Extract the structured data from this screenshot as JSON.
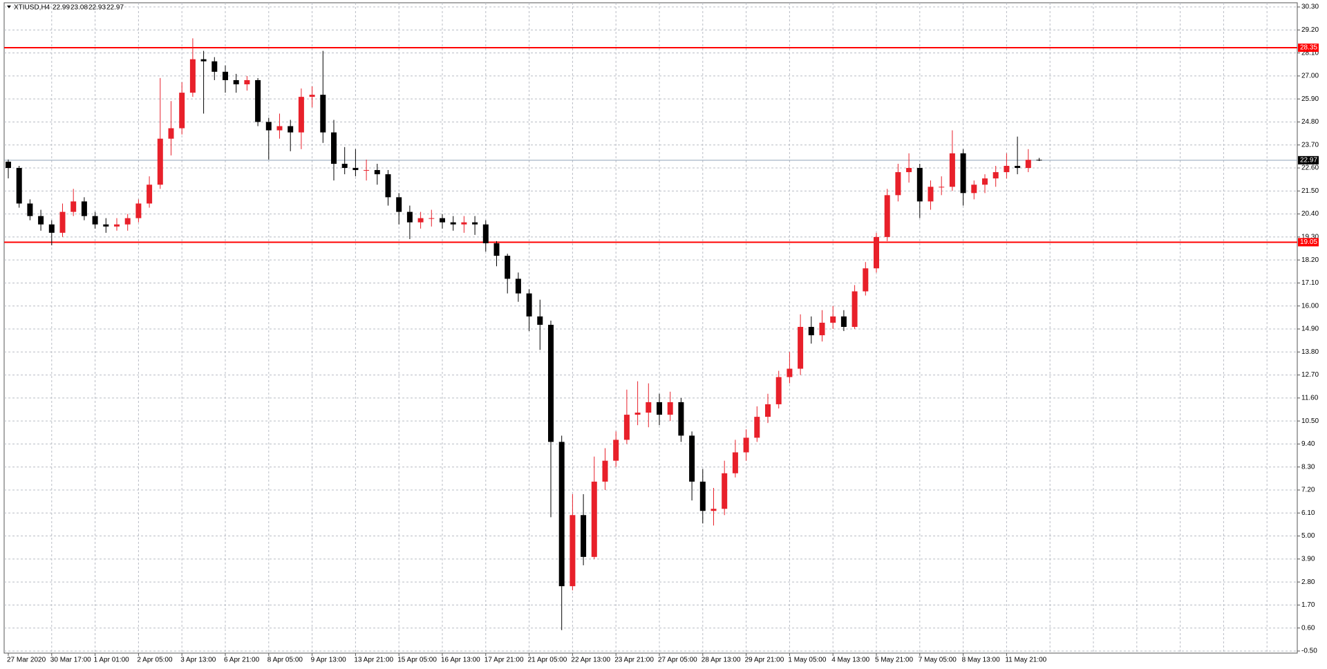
{
  "chart_data": {
    "type": "candlestick",
    "title": "XTIUSD,H4",
    "up_color": "#e8202a",
    "down_color": "#000000",
    "level_color": "#ff0000",
    "price_color": "#8fa2b8",
    "grid": true,
    "ylim": [
      -0.6,
      30.5
    ],
    "yticks": [
      {
        "value": 30.3,
        "label": "30.30"
      },
      {
        "value": 29.2,
        "label": "29.20"
      },
      {
        "value": 28.1,
        "label": "28.10"
      },
      {
        "value": 27,
        "label": "27.00"
      },
      {
        "value": 25.9,
        "label": "25.90"
      },
      {
        "value": 24.8,
        "label": "24.80"
      },
      {
        "value": 23.7,
        "label": "23.70"
      },
      {
        "value": 22.6,
        "label": "22.60"
      },
      {
        "value": 21.5,
        "label": "21.50"
      },
      {
        "value": 20.4,
        "label": "20.40"
      },
      {
        "value": 19.3,
        "label": "19.30"
      },
      {
        "value": 18.2,
        "label": "18.20"
      },
      {
        "value": 17.1,
        "label": "17.10"
      },
      {
        "value": 16,
        "label": "16.00"
      },
      {
        "value": 14.9,
        "label": "14.90"
      },
      {
        "value": 13.8,
        "label": "13.80"
      },
      {
        "value": 12.7,
        "label": "12.70"
      },
      {
        "value": 11.6,
        "label": "11.60"
      },
      {
        "value": 10.5,
        "label": "10.50"
      },
      {
        "value": 9.4,
        "label": "9.40"
      },
      {
        "value": 8.3,
        "label": "8.30"
      },
      {
        "value": 7.2,
        "label": "7.20"
      },
      {
        "value": 6.1,
        "label": "6.10"
      },
      {
        "value": 5,
        "label": "5.00"
      },
      {
        "value": 3.9,
        "label": "3.90"
      },
      {
        "value": 2.8,
        "label": "2.80"
      },
      {
        "value": 1.7,
        "label": "1.70"
      },
      {
        "value": 0.6,
        "label": "0.60"
      },
      {
        "value": -0.5,
        "label": "-0.50"
      }
    ],
    "xtick_labels": [
      "27 Mar 2020",
      "30 Mar 17:00",
      "1 Apr 01:00",
      "2 Apr 05:00",
      "3 Apr 13:00",
      "6 Apr 21:00",
      "8 Apr 05:00",
      "9 Apr 13:00",
      "13 Apr 21:00",
      "15 Apr 05:00",
      "16 Apr 13:00",
      "17 Apr 21:00",
      "21 Apr 05:00",
      "22 Apr 13:00",
      "23 Apr 21:00",
      "27 Apr 05:00",
      "28 Apr 13:00",
      "29 Apr 21:00",
      "1 May 05:00",
      "4 May 13:00",
      "5 May 21:00",
      "7 May 05:00",
      "8 May 13:00",
      "11 May 21:00"
    ],
    "levels": [
      28.35,
      19.05
    ],
    "last_price": 22.97,
    "ohlc": [
      [
        22.9,
        23.0,
        22.1,
        22.6
      ],
      [
        22.6,
        22.7,
        20.7,
        20.9
      ],
      [
        20.9,
        21.1,
        20.1,
        20.3
      ],
      [
        20.3,
        20.6,
        19.6,
        19.9
      ],
      [
        19.9,
        20.1,
        18.9,
        19.5
      ],
      [
        19.5,
        20.9,
        19.3,
        20.5
      ],
      [
        20.5,
        21.6,
        20.3,
        21.0
      ],
      [
        21.0,
        21.2,
        20.1,
        20.3
      ],
      [
        20.3,
        20.5,
        19.7,
        19.9
      ],
      [
        19.9,
        20.2,
        19.5,
        19.8
      ],
      [
        19.8,
        20.2,
        19.6,
        19.9
      ],
      [
        19.9,
        20.4,
        19.6,
        20.2
      ],
      [
        20.2,
        21.1,
        20.0,
        20.9
      ],
      [
        20.9,
        22.2,
        20.7,
        21.8
      ],
      [
        21.8,
        26.9,
        21.6,
        24.0
      ],
      [
        24.0,
        25.8,
        23.2,
        24.5
      ],
      [
        24.5,
        26.7,
        24.2,
        26.2
      ],
      [
        26.2,
        28.8,
        26.0,
        27.8
      ],
      [
        27.8,
        28.2,
        25.2,
        27.7
      ],
      [
        27.7,
        27.9,
        26.8,
        27.2
      ],
      [
        27.2,
        27.5,
        26.2,
        26.8
      ],
      [
        26.8,
        27.1,
        26.2,
        26.6
      ],
      [
        26.6,
        27.0,
        26.3,
        26.8
      ],
      [
        26.8,
        26.9,
        24.6,
        24.8
      ],
      [
        24.8,
        25.0,
        23.0,
        24.4
      ],
      [
        24.4,
        25.2,
        24.0,
        24.6
      ],
      [
        24.6,
        24.9,
        23.4,
        24.3
      ],
      [
        24.3,
        26.4,
        23.5,
        26.0
      ],
      [
        26.0,
        26.5,
        25.5,
        26.1
      ],
      [
        26.1,
        28.2,
        23.8,
        24.3
      ],
      [
        24.3,
        24.9,
        22.0,
        22.8
      ],
      [
        22.8,
        23.6,
        22.3,
        22.6
      ],
      [
        22.6,
        23.5,
        22.2,
        22.5
      ],
      [
        22.5,
        23.0,
        22.0,
        22.5
      ],
      [
        22.5,
        22.8,
        21.8,
        22.3
      ],
      [
        22.3,
        22.5,
        20.8,
        21.2
      ],
      [
        21.2,
        21.4,
        19.9,
        20.5
      ],
      [
        20.5,
        20.8,
        19.2,
        20.0
      ],
      [
        20.0,
        20.5,
        19.7,
        20.2
      ],
      [
        20.2,
        20.6,
        19.8,
        20.2
      ],
      [
        20.2,
        20.4,
        19.7,
        20.0
      ],
      [
        20.0,
        20.3,
        19.6,
        19.9
      ],
      [
        19.9,
        20.3,
        19.5,
        20.0
      ],
      [
        20.0,
        20.3,
        19.4,
        19.9
      ],
      [
        19.9,
        20.1,
        18.6,
        19.0
      ],
      [
        19.0,
        19.1,
        17.9,
        18.4
      ],
      [
        18.4,
        18.5,
        16.6,
        17.3
      ],
      [
        17.3,
        17.6,
        16.2,
        16.6
      ],
      [
        16.6,
        16.8,
        14.8,
        15.5
      ],
      [
        15.5,
        16.3,
        13.9,
        15.1
      ],
      [
        15.1,
        15.3,
        5.9,
        9.5
      ],
      [
        9.5,
        9.8,
        0.5,
        2.6
      ],
      [
        2.6,
        7.0,
        2.4,
        6.0
      ],
      [
        6.0,
        7.0,
        3.6,
        4.0
      ],
      [
        4.0,
        8.8,
        3.9,
        7.6
      ],
      [
        7.6,
        9.2,
        7.2,
        8.6
      ],
      [
        8.6,
        10.0,
        8.3,
        9.6
      ],
      [
        9.6,
        12.0,
        9.4,
        10.8
      ],
      [
        10.8,
        12.4,
        10.3,
        10.9
      ],
      [
        10.9,
        12.3,
        10.2,
        11.4
      ],
      [
        11.4,
        11.8,
        10.3,
        10.8
      ],
      [
        10.8,
        11.9,
        10.5,
        11.4
      ],
      [
        11.4,
        11.6,
        9.5,
        9.8
      ],
      [
        9.8,
        10.0,
        6.7,
        7.6
      ],
      [
        7.6,
        8.2,
        5.6,
        6.2
      ],
      [
        6.2,
        7.3,
        5.5,
        6.3
      ],
      [
        6.3,
        8.6,
        6.0,
        8.0
      ],
      [
        8.0,
        9.6,
        7.8,
        9.0
      ],
      [
        9.0,
        10.1,
        8.6,
        9.7
      ],
      [
        9.7,
        11.2,
        9.5,
        10.7
      ],
      [
        10.7,
        11.8,
        10.4,
        11.3
      ],
      [
        11.3,
        12.9,
        11.1,
        12.6
      ],
      [
        12.6,
        13.8,
        12.3,
        13.0
      ],
      [
        13.0,
        15.6,
        12.7,
        15.0
      ],
      [
        15.0,
        15.5,
        14.2,
        14.6
      ],
      [
        14.6,
        15.8,
        14.3,
        15.2
      ],
      [
        15.2,
        16.0,
        14.9,
        15.5
      ],
      [
        15.5,
        15.8,
        14.8,
        15.0
      ],
      [
        15.0,
        17.0,
        14.9,
        16.7
      ],
      [
        16.7,
        18.1,
        16.5,
        17.8
      ],
      [
        17.8,
        19.5,
        17.6,
        19.3
      ],
      [
        19.3,
        21.6,
        19.1,
        21.3
      ],
      [
        21.3,
        22.8,
        21.0,
        22.4
      ],
      [
        22.4,
        23.3,
        21.9,
        22.6
      ],
      [
        22.6,
        22.8,
        20.2,
        21.0
      ],
      [
        21.0,
        22.0,
        20.6,
        21.7
      ],
      [
        21.7,
        22.2,
        21.3,
        21.7
      ],
      [
        21.7,
        24.4,
        21.5,
        23.3
      ],
      [
        23.3,
        23.5,
        20.8,
        21.4
      ],
      [
        21.4,
        22.0,
        21.1,
        21.8
      ],
      [
        21.8,
        22.3,
        21.4,
        22.1
      ],
      [
        22.1,
        22.7,
        21.7,
        22.4
      ],
      [
        22.4,
        23.3,
        22.1,
        22.7
      ],
      [
        22.7,
        24.1,
        22.3,
        22.6
      ],
      [
        22.6,
        23.5,
        22.4,
        22.99
      ],
      [
        22.99,
        23.08,
        22.93,
        22.97
      ]
    ]
  }
}
